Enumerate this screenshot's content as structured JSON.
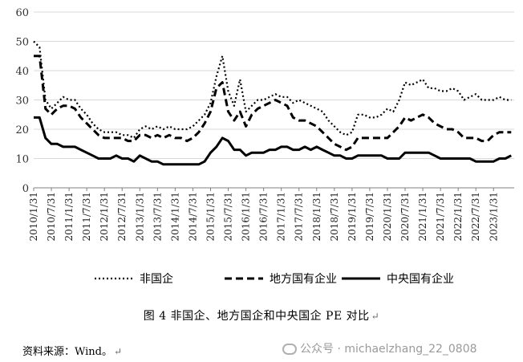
{
  "chart_data": {
    "type": "line",
    "ylim": [
      0,
      60
    ],
    "y_ticks": [
      0,
      10,
      20,
      30,
      40,
      50,
      60
    ],
    "x_tick_labels": [
      "2010/1/31",
      "2010/7/31",
      "2011/1/31",
      "2011/7/31",
      "2012/1/31",
      "2012/7/31",
      "2013/1/31",
      "2013/7/31",
      "2014/1/31",
      "2014/7/31",
      "2015/1/31",
      "2015/7/31",
      "2016/1/31",
      "2016/7/31",
      "2017/1/31",
      "2017/7/31",
      "2018/1/31",
      "2018/7/31",
      "2019/1/31",
      "2019/7/31",
      "2020/1/31",
      "2020/7/31",
      "2021/1/31",
      "2021/7/31",
      "2022/1/31",
      "2022/7/31",
      "2023/1/31"
    ],
    "x_range": [
      "2010/1/31",
      "2023/8/31"
    ],
    "legend_position": "bottom",
    "series": [
      {
        "name": "非国企",
        "style": "dotted",
        "points": [
          [
            "2010/1/31",
            50
          ],
          [
            "2010/3/31",
            48
          ],
          [
            "2010/5/31",
            30
          ],
          [
            "2010/7/31",
            27
          ],
          [
            "2010/9/31",
            29
          ],
          [
            "2010/11/31",
            31
          ],
          [
            "2011/1/31",
            30
          ],
          [
            "2011/3/31",
            30
          ],
          [
            "2011/5/31",
            27
          ],
          [
            "2011/7/31",
            25
          ],
          [
            "2011/9/31",
            22
          ],
          [
            "2011/11/31",
            20
          ],
          [
            "2012/1/31",
            19
          ],
          [
            "2012/3/31",
            19
          ],
          [
            "2012/5/31",
            19
          ],
          [
            "2012/7/31",
            18
          ],
          [
            "2012/9/31",
            18
          ],
          [
            "2012/11/31",
            17
          ],
          [
            "2013/1/31",
            20
          ],
          [
            "2013/3/31",
            21
          ],
          [
            "2013/5/31",
            20
          ],
          [
            "2013/7/31",
            21
          ],
          [
            "2013/9/31",
            20
          ],
          [
            "2013/11/31",
            21
          ],
          [
            "2014/1/31",
            20
          ],
          [
            "2014/3/31",
            20
          ],
          [
            "2014/5/31",
            20
          ],
          [
            "2014/7/31",
            21
          ],
          [
            "2014/9/31",
            23
          ],
          [
            "2014/11/31",
            25
          ],
          [
            "2015/1/31",
            29
          ],
          [
            "2015/3/31",
            38
          ],
          [
            "2015/5/31",
            45
          ],
          [
            "2015/7/31",
            33
          ],
          [
            "2015/9/31",
            28
          ],
          [
            "2015/11/31",
            37
          ],
          [
            "2016/1/31",
            26
          ],
          [
            "2016/3/31",
            28
          ],
          [
            "2016/5/31",
            30
          ],
          [
            "2016/7/31",
            30
          ],
          [
            "2016/9/31",
            31
          ],
          [
            "2016/11/31",
            32
          ],
          [
            "2017/1/31",
            31
          ],
          [
            "2017/3/31",
            31
          ],
          [
            "2017/5/31",
            29
          ],
          [
            "2017/7/31",
            30
          ],
          [
            "2017/9/31",
            29
          ],
          [
            "2017/11/31",
            28
          ],
          [
            "2018/1/31",
            27
          ],
          [
            "2018/3/31",
            26
          ],
          [
            "2018/5/31",
            23
          ],
          [
            "2018/7/31",
            21
          ],
          [
            "2018/9/31",
            19
          ],
          [
            "2018/11/31",
            18
          ],
          [
            "2019/1/31",
            19
          ],
          [
            "2019/3/31",
            25
          ],
          [
            "2019/5/31",
            25
          ],
          [
            "2019/7/31",
            24
          ],
          [
            "2019/9/31",
            24
          ],
          [
            "2019/11/31",
            25
          ],
          [
            "2020/1/31",
            27
          ],
          [
            "2020/3/31",
            26
          ],
          [
            "2020/5/31",
            30
          ],
          [
            "2020/7/31",
            36
          ],
          [
            "2020/9/31",
            35
          ],
          [
            "2020/11/31",
            36
          ],
          [
            "2021/1/31",
            37
          ],
          [
            "2021/3/31",
            34
          ],
          [
            "2021/5/31",
            34
          ],
          [
            "2021/7/31",
            33
          ],
          [
            "2021/9/31",
            33
          ],
          [
            "2021/11/31",
            34
          ],
          [
            "2022/1/31",
            33
          ],
          [
            "2022/3/31",
            30
          ],
          [
            "2022/5/31",
            31
          ],
          [
            "2022/7/31",
            32
          ],
          [
            "2022/9/31",
            30
          ],
          [
            "2022/11/31",
            30
          ],
          [
            "2023/1/31",
            30
          ],
          [
            "2023/3/31",
            31
          ],
          [
            "2023/5/31",
            30
          ],
          [
            "2023/7/31",
            30
          ]
        ]
      },
      {
        "name": "地方国有企业",
        "style": "dashed",
        "points": [
          [
            "2010/1/31",
            45
          ],
          [
            "2010/3/31",
            45
          ],
          [
            "2010/5/31",
            27
          ],
          [
            "2010/7/31",
            25
          ],
          [
            "2010/9/31",
            27
          ],
          [
            "2010/11/31",
            28
          ],
          [
            "2011/1/31",
            28
          ],
          [
            "2011/3/31",
            27
          ],
          [
            "2011/5/31",
            24
          ],
          [
            "2011/7/31",
            22
          ],
          [
            "2011/9/31",
            20
          ],
          [
            "2011/11/31",
            18
          ],
          [
            "2012/1/31",
            17
          ],
          [
            "2012/3/31",
            17
          ],
          [
            "2012/5/31",
            17
          ],
          [
            "2012/7/31",
            17
          ],
          [
            "2012/9/31",
            16
          ],
          [
            "2012/11/31",
            16
          ],
          [
            "2013/1/31",
            18
          ],
          [
            "2013/3/31",
            18
          ],
          [
            "2013/5/31",
            17
          ],
          [
            "2013/7/31",
            18
          ],
          [
            "2013/9/31",
            17
          ],
          [
            "2013/11/31",
            18
          ],
          [
            "2014/1/31",
            17
          ],
          [
            "2014/3/31",
            17
          ],
          [
            "2014/5/31",
            16
          ],
          [
            "2014/7/31",
            17
          ],
          [
            "2014/9/31",
            19
          ],
          [
            "2014/11/31",
            22
          ],
          [
            "2015/1/31",
            26
          ],
          [
            "2015/3/31",
            34
          ],
          [
            "2015/5/31",
            36
          ],
          [
            "2015/7/31",
            26
          ],
          [
            "2015/9/31",
            23
          ],
          [
            "2015/11/31",
            26
          ],
          [
            "2016/1/31",
            21
          ],
          [
            "2016/3/31",
            25
          ],
          [
            "2016/5/31",
            27
          ],
          [
            "2016/7/31",
            28
          ],
          [
            "2016/9/31",
            29
          ],
          [
            "2016/11/31",
            30
          ],
          [
            "2017/1/31",
            29
          ],
          [
            "2017/3/31",
            28
          ],
          [
            "2017/5/31",
            24
          ],
          [
            "2017/7/31",
            23
          ],
          [
            "2017/9/31",
            23
          ],
          [
            "2017/11/31",
            22
          ],
          [
            "2018/1/31",
            21
          ],
          [
            "2018/3/31",
            19
          ],
          [
            "2018/5/31",
            17
          ],
          [
            "2018/7/31",
            15
          ],
          [
            "2018/9/31",
            14
          ],
          [
            "2018/11/31",
            13
          ],
          [
            "2019/1/31",
            14
          ],
          [
            "2019/3/31",
            17
          ],
          [
            "2019/5/31",
            17
          ],
          [
            "2019/7/31",
            17
          ],
          [
            "2019/9/31",
            17
          ],
          [
            "2019/11/31",
            17
          ],
          [
            "2020/1/31",
            17
          ],
          [
            "2020/3/31",
            19
          ],
          [
            "2020/5/31",
            21
          ],
          [
            "2020/7/31",
            24
          ],
          [
            "2020/9/31",
            23
          ],
          [
            "2020/11/31",
            24
          ],
          [
            "2021/1/31",
            25
          ],
          [
            "2021/3/31",
            24
          ],
          [
            "2021/5/31",
            22
          ],
          [
            "2021/7/31",
            21
          ],
          [
            "2021/9/31",
            20
          ],
          [
            "2021/11/31",
            20
          ],
          [
            "2022/1/31",
            19
          ],
          [
            "2022/3/31",
            17
          ],
          [
            "2022/5/31",
            17
          ],
          [
            "2022/7/31",
            17
          ],
          [
            "2022/9/31",
            16
          ],
          [
            "2022/11/31",
            16
          ],
          [
            "2023/1/31",
            18
          ],
          [
            "2023/3/31",
            19
          ],
          [
            "2023/5/31",
            19
          ],
          [
            "2023/7/31",
            19
          ]
        ]
      },
      {
        "name": "中央国有企业",
        "style": "solid",
        "points": [
          [
            "2010/1/31",
            24
          ],
          [
            "2010/3/31",
            24
          ],
          [
            "2010/5/31",
            17
          ],
          [
            "2010/7/31",
            15
          ],
          [
            "2010/9/31",
            15
          ],
          [
            "2010/11/31",
            14
          ],
          [
            "2011/1/31",
            14
          ],
          [
            "2011/3/31",
            14
          ],
          [
            "2011/5/31",
            13
          ],
          [
            "2011/7/31",
            12
          ],
          [
            "2011/9/31",
            11
          ],
          [
            "2011/11/31",
            10
          ],
          [
            "2012/1/31",
            10
          ],
          [
            "2012/3/31",
            10
          ],
          [
            "2012/5/31",
            11
          ],
          [
            "2012/7/31",
            10
          ],
          [
            "2012/9/31",
            10
          ],
          [
            "2012/11/31",
            9
          ],
          [
            "2013/1/31",
            11
          ],
          [
            "2013/3/31",
            10
          ],
          [
            "2013/5/31",
            9
          ],
          [
            "2013/7/31",
            9
          ],
          [
            "2013/9/31",
            8
          ],
          [
            "2013/11/31",
            8
          ],
          [
            "2014/1/31",
            8
          ],
          [
            "2014/3/31",
            8
          ],
          [
            "2014/5/31",
            8
          ],
          [
            "2014/7/31",
            8
          ],
          [
            "2014/9/31",
            8
          ],
          [
            "2014/11/31",
            9
          ],
          [
            "2015/1/31",
            12
          ],
          [
            "2015/3/31",
            14
          ],
          [
            "2015/5/31",
            17
          ],
          [
            "2015/7/31",
            16
          ],
          [
            "2015/9/31",
            13
          ],
          [
            "2015/11/31",
            13
          ],
          [
            "2016/1/31",
            11
          ],
          [
            "2016/3/31",
            12
          ],
          [
            "2016/5/31",
            12
          ],
          [
            "2016/7/31",
            12
          ],
          [
            "2016/9/31",
            13
          ],
          [
            "2016/11/31",
            13
          ],
          [
            "2017/1/31",
            14
          ],
          [
            "2017/3/31",
            14
          ],
          [
            "2017/5/31",
            13
          ],
          [
            "2017/7/31",
            13
          ],
          [
            "2017/9/31",
            14
          ],
          [
            "2017/11/31",
            13
          ],
          [
            "2018/1/31",
            14
          ],
          [
            "2018/3/31",
            13
          ],
          [
            "2018/5/31",
            12
          ],
          [
            "2018/7/31",
            11
          ],
          [
            "2018/9/31",
            11
          ],
          [
            "2018/11/31",
            10
          ],
          [
            "2019/1/31",
            10
          ],
          [
            "2019/3/31",
            11
          ],
          [
            "2019/5/31",
            11
          ],
          [
            "2019/7/31",
            11
          ],
          [
            "2019/9/31",
            11
          ],
          [
            "2019/11/31",
            11
          ],
          [
            "2020/1/31",
            10
          ],
          [
            "2020/3/31",
            10
          ],
          [
            "2020/5/31",
            10
          ],
          [
            "2020/7/31",
            12
          ],
          [
            "2020/9/31",
            12
          ],
          [
            "2020/11/31",
            12
          ],
          [
            "2021/1/31",
            12
          ],
          [
            "2021/3/31",
            12
          ],
          [
            "2021/5/31",
            11
          ],
          [
            "2021/7/31",
            10
          ],
          [
            "2021/9/31",
            10
          ],
          [
            "2021/11/31",
            10
          ],
          [
            "2022/1/31",
            10
          ],
          [
            "2022/3/31",
            10
          ],
          [
            "2022/5/31",
            10
          ],
          [
            "2022/7/31",
            9
          ],
          [
            "2022/9/31",
            9
          ],
          [
            "2022/11/31",
            9
          ],
          [
            "2023/1/31",
            9
          ],
          [
            "2023/3/31",
            10
          ],
          [
            "2023/5/31",
            10
          ],
          [
            "2023/7/31",
            11
          ]
        ]
      }
    ]
  },
  "caption": "图 4    非国企、地方国企和中央国企 PE 对比",
  "caption_mark": "↵",
  "source": "资料来源：Wind。",
  "source_mark": "↵",
  "watermark": "公众号 · michaelzhang_22_0808"
}
